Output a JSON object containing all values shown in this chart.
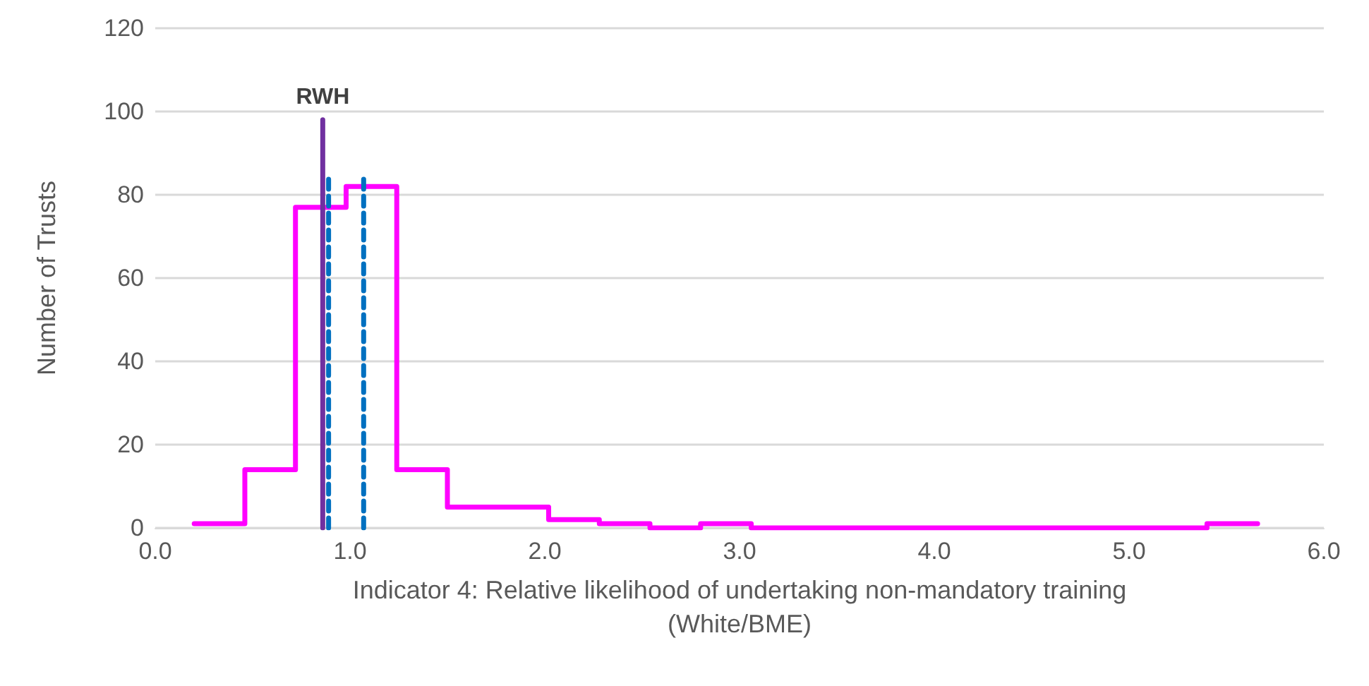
{
  "chart_data": {
    "type": "histogram",
    "xlabel": "Indicator 4: Relative likelihood of undertaking non-mandatory training\n(White/BME)",
    "ylabel": "Number of Trusts",
    "xlim": [
      0,
      6
    ],
    "xticks": [
      {
        "value": 0,
        "label": "0.0"
      },
      {
        "value": 1,
        "label": "1.0"
      },
      {
        "value": 2,
        "label": "2.0"
      },
      {
        "value": 3,
        "label": "3.0"
      },
      {
        "value": 4,
        "label": "4.0"
      },
      {
        "value": 5,
        "label": "5.0"
      },
      {
        "value": 6,
        "label": "6.0"
      }
    ],
    "ylim": [
      0,
      120
    ],
    "yticks": [
      0,
      20,
      40,
      60,
      80,
      100,
      120
    ],
    "grid": "y",
    "series": [
      {
        "color": "#ff00ff",
        "bins": [
          0.2,
          0.46,
          0.72,
          0.98,
          1.24,
          1.5,
          1.76,
          2.02,
          2.28,
          2.54,
          2.8,
          3.06,
          3.32,
          3.58,
          3.84,
          4.1,
          4.36,
          4.62,
          4.88,
          5.14,
          5.4,
          5.66
        ],
        "values": [
          1,
          14,
          77,
          82,
          14,
          5,
          5,
          2,
          1,
          0,
          1,
          0,
          0,
          0,
          0,
          0,
          0,
          0,
          0,
          0,
          1
        ]
      },
      {
        "type": "line",
        "color": "#7030a0",
        "line_style": "solid",
        "x": [
          0.86,
          0.86
        ],
        "values": [
          0,
          98
        ]
      },
      {
        "type": "line",
        "color": "#0070c0",
        "line_style": "dashed",
        "x": [
          0.89,
          0.89
        ],
        "values": [
          0,
          85
        ]
      },
      {
        "type": "line",
        "color": "#0070c0",
        "line_style": "dashed",
        "x": [
          1.07,
          1.07
        ],
        "values": [
          0,
          85
        ]
      }
    ],
    "annotations": [
      {
        "text": "RWH",
        "x": 0.86,
        "y": 98
      }
    ]
  }
}
